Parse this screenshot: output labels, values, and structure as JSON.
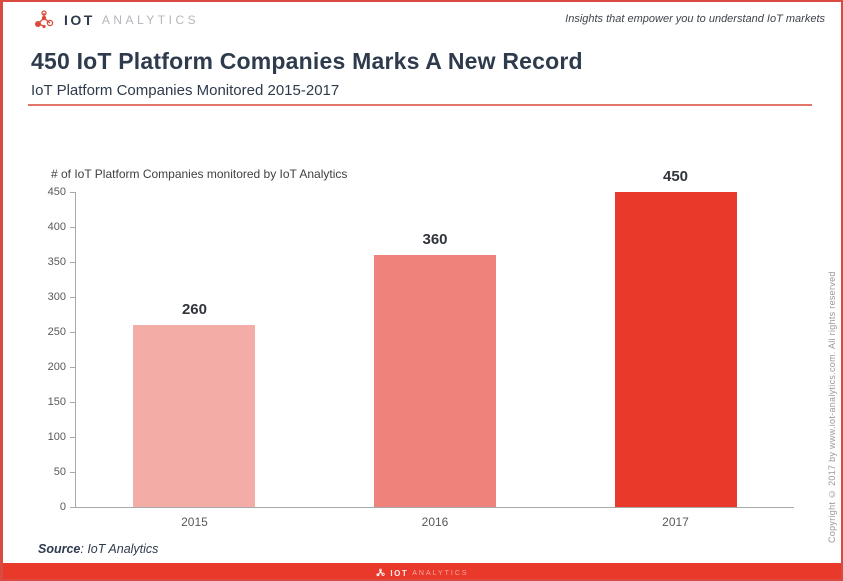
{
  "header": {
    "brand": {
      "bold": "IOT",
      "light": "ANALYTICS"
    },
    "tagline": "Insights that empower you to understand IoT markets"
  },
  "title_block": {
    "title": "450 IoT Platform Companies Marks A New Record",
    "subtitle": "IoT Platform Companies Monitored 2015-2017"
  },
  "chart_data": {
    "type": "bar",
    "title": "# of IoT Platform Companies monitored by IoT Analytics",
    "categories": [
      "2015",
      "2016",
      "2017"
    ],
    "values": [
      260,
      360,
      450
    ],
    "bar_colors": [
      "#f3aca6",
      "#ef827a",
      "#e8392b"
    ],
    "xlabel": "",
    "ylabel": "",
    "ylim": [
      0,
      450
    ],
    "ytick_step": 50,
    "grid": false,
    "legend": "none",
    "value_labels_shown": true
  },
  "footer": {
    "source_label": "Source",
    "source_value": ": IoT Analytics",
    "copyright": "Copyright © 2017 by www.iot-analytics.com. All rights reserved",
    "brand_bold": "IOT",
    "brand_light": "ANALYTICS"
  },
  "colors": {
    "accent_red": "#e8392b",
    "border_red": "#d94a40",
    "divider_salmon": "#e2766d",
    "title_navy": "#2e3b4d",
    "axis_gray": "#a9a9a9"
  }
}
